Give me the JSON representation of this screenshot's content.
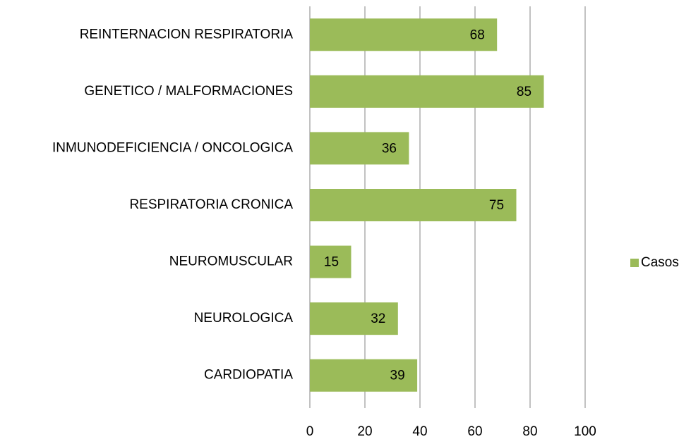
{
  "chart_data": {
    "type": "bar",
    "orientation": "horizontal",
    "categories": [
      "REINTERNACION RESPIRATORIA",
      "GENETICO / MALFORMACIONES",
      "INMUNODEFICIENCIA / ONCOLOGICA",
      "RESPIRATORIA CRONICA",
      "NEUROMUSCULAR",
      "NEUROLOGICA",
      "CARDIOPATIA"
    ],
    "series": [
      {
        "name": "Casos",
        "color": "#9bbb59",
        "values": [
          68,
          85,
          36,
          75,
          15,
          32,
          39
        ]
      }
    ],
    "xlim": [
      0,
      100
    ],
    "xticks": [
      0,
      20,
      40,
      60,
      80,
      100
    ],
    "grid": true,
    "legend": "right"
  }
}
